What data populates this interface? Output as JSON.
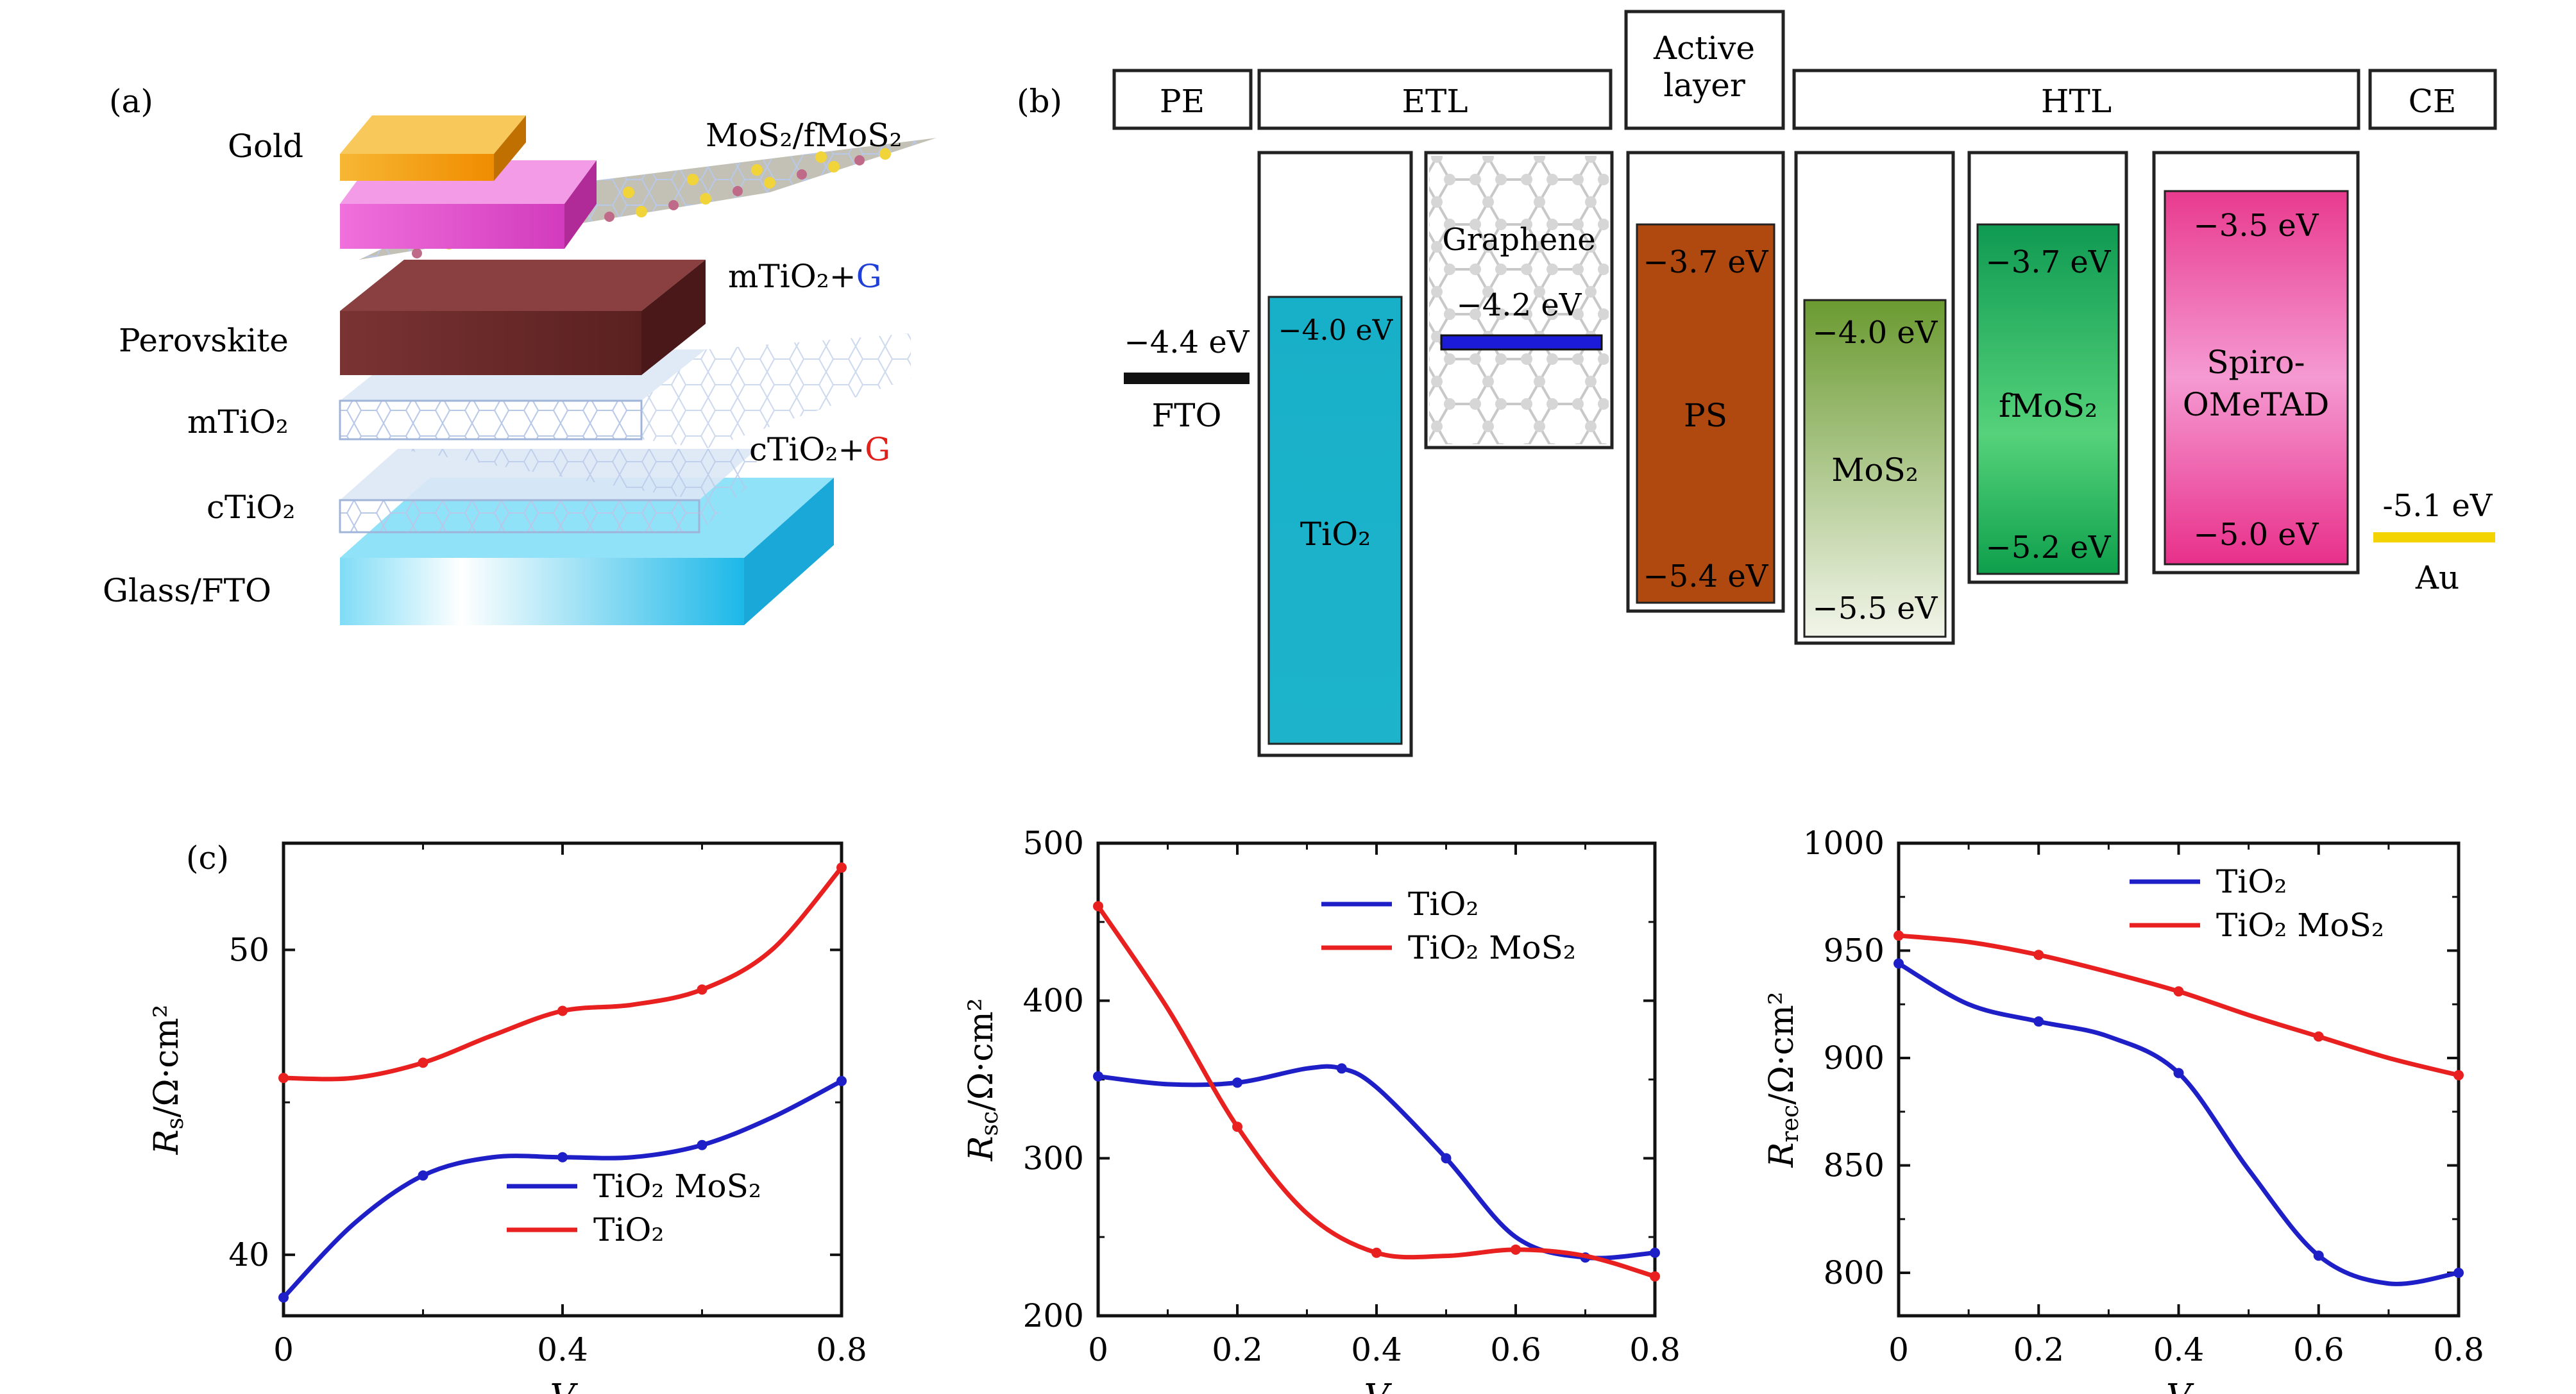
{
  "panel_a": {
    "label": "(a)",
    "layers": {
      "gold": "Gold",
      "mos2": "MoS₂/fMoS₂",
      "mtio2_g_prefix": "mTiO₂+",
      "mtio2_g_suffix": "G",
      "perovskite": "Perovskite",
      "mtio2": "mTiO₂",
      "ctio2_g_prefix": "cTiO₂+",
      "ctio2_g_suffix": "G",
      "ctio2": "cTiO₂",
      "glass": "Glass/FTO"
    },
    "colors": {
      "gold": "#f5a623",
      "mos2_layer": "#e85fcf",
      "perovskite": "#6b2a2a",
      "glass": "#25c3ef",
      "g_blue": "#1f3fd6",
      "g_red": "#e0201a"
    }
  },
  "panel_b": {
    "label": "(b)",
    "headers": {
      "pe": "PE",
      "etl": "ETL",
      "active": "Active layer",
      "htl": "HTL",
      "ce": "CE"
    },
    "fto": {
      "value": "−4.4 eV",
      "name": "FTO"
    },
    "tio2": {
      "top": "−4.0 eV",
      "name": "TiO₂"
    },
    "graphene": {
      "name": "Graphene",
      "value": "−4.2 eV"
    },
    "ps": {
      "top": "−3.7 eV",
      "bottom": "−5.4 eV",
      "name": "PS"
    },
    "mos2": {
      "top": "−4.0 eV",
      "bottom": "−5.5 eV",
      "name": "MoS₂"
    },
    "fmos2": {
      "top": "−3.7 eV",
      "bottom": "−5.2 eV",
      "name": "fMoS₂"
    },
    "spiro": {
      "top": "−3.5 eV",
      "bottom": "−5.0 eV",
      "name1": "Spiro-",
      "name2": "OMeTAD"
    },
    "au": {
      "value": "-5.1 eV",
      "name": "Au"
    },
    "colors": {
      "tio2": "#1fb2c8",
      "ps": "#b0490f",
      "mos2_top": "#6a9a30",
      "fmos2_top": "#0f9a52",
      "spiro_top": "#e6308a",
      "au": "#f3d400"
    }
  },
  "panel_c": {
    "label": "(c)"
  },
  "chart_data": [
    {
      "type": "line",
      "xlabel": "V",
      "ylabel": "Rs/Ω·cm²",
      "xlim": [
        0,
        0.8
      ],
      "ylim": [
        38,
        53.5
      ],
      "xticks": [
        "0",
        "0.4",
        "0.8"
      ],
      "yticks": [
        "40",
        "50"
      ],
      "legend": "bottom-right",
      "series": [
        {
          "name": "TiO₂ MoS₂",
          "color": "#1f1fc8",
          "x": [
            0,
            0.1,
            0.2,
            0.3,
            0.4,
            0.5,
            0.6,
            0.7,
            0.8
          ],
          "y": [
            38.6,
            41.0,
            42.6,
            43.2,
            43.2,
            43.2,
            43.6,
            44.5,
            45.7
          ]
        },
        {
          "name": "TiO₂",
          "color": "#e82020",
          "x": [
            0,
            0.1,
            0.2,
            0.3,
            0.4,
            0.5,
            0.6,
            0.7,
            0.8
          ],
          "y": [
            45.8,
            45.8,
            46.3,
            47.2,
            48.0,
            48.2,
            48.7,
            50.0,
            52.7
          ]
        }
      ]
    },
    {
      "type": "line",
      "xlabel": "V",
      "ylabel": "Rsc/Ω·cm²",
      "xlim": [
        0,
        0.8
      ],
      "ylim": [
        200,
        500
      ],
      "xticks": [
        "0",
        "0.2",
        "0.4",
        "0.6",
        "0.8"
      ],
      "yticks": [
        "200",
        "300",
        "400",
        "500"
      ],
      "legend": "top-right",
      "series": [
        {
          "name": "TiO₂",
          "color": "#1f1fc8",
          "x": [
            0,
            0.1,
            0.2,
            0.3,
            0.35,
            0.4,
            0.5,
            0.6,
            0.7,
            0.8
          ],
          "y": [
            352,
            347,
            348,
            357,
            357,
            345,
            300,
            250,
            237,
            240
          ]
        },
        {
          "name": "TiO₂ MoS₂",
          "color": "#e82020",
          "x": [
            0,
            0.1,
            0.2,
            0.3,
            0.4,
            0.5,
            0.6,
            0.7,
            0.8
          ],
          "y": [
            460,
            395,
            320,
            265,
            240,
            238,
            242,
            238,
            225
          ]
        }
      ]
    },
    {
      "type": "line",
      "xlabel": "V",
      "ylabel": "Rrec/Ω·cm²",
      "xlim": [
        0,
        0.8
      ],
      "ylim": [
        780,
        1000
      ],
      "xticks": [
        "0",
        "0.2",
        "0.4",
        "0.6",
        "0.8"
      ],
      "yticks": [
        "800",
        "850",
        "900",
        "950",
        "1000"
      ],
      "legend": "top-right",
      "series": [
        {
          "name": "TiO₂",
          "color": "#1f1fc8",
          "x": [
            0,
            0.1,
            0.2,
            0.3,
            0.4,
            0.5,
            0.6,
            0.7,
            0.8
          ],
          "y": [
            944,
            925,
            917,
            910,
            893,
            848,
            808,
            795,
            800
          ]
        },
        {
          "name": "TiO₂ MoS₂",
          "color": "#e82020",
          "x": [
            0,
            0.1,
            0.2,
            0.3,
            0.4,
            0.5,
            0.6,
            0.7,
            0.8
          ],
          "y": [
            957,
            954,
            948,
            940,
            931,
            920,
            910,
            900,
            892
          ]
        }
      ]
    }
  ]
}
